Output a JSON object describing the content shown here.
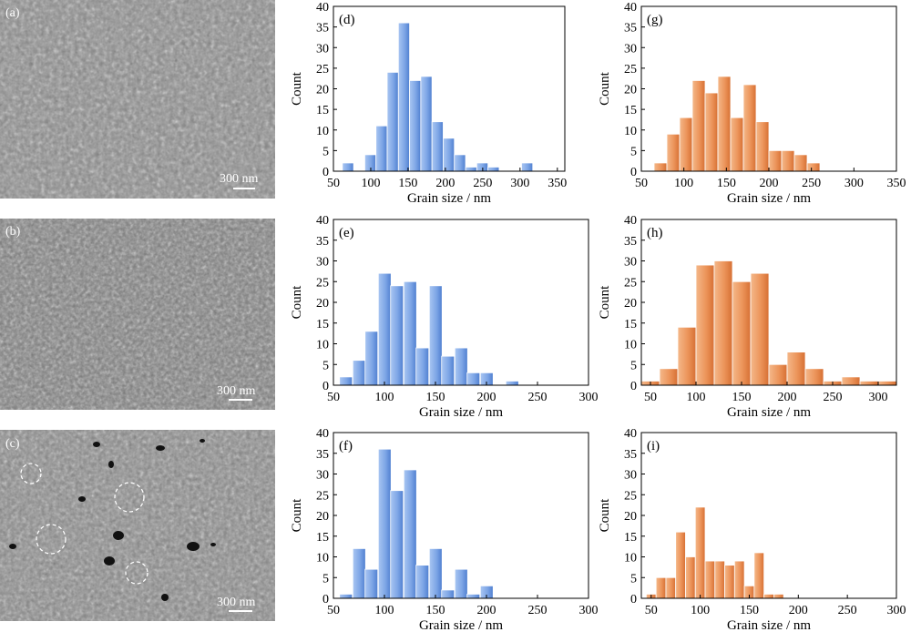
{
  "micrographs": [
    {
      "tag": "(a)",
      "scale_label": "300 nm",
      "pores": false
    },
    {
      "tag": "(b)",
      "scale_label": "300 nm",
      "pores": false
    },
    {
      "tag": "(c)",
      "scale_label": "300 nm",
      "pores": true
    }
  ],
  "colors": {
    "blue": "#7ea6e6",
    "blue_dark": "#4f7fd0",
    "orange": "#ec945a",
    "orange_dark": "#d66f33"
  },
  "chart_data": [
    {
      "id": "d",
      "type": "bar",
      "tag": "(d)",
      "xlabel": "Grain size / nm",
      "ylabel": "Count",
      "xlim": [
        50,
        360
      ],
      "ylim": [
        0,
        40
      ],
      "xticks": [
        50,
        100,
        150,
        200,
        250,
        300,
        350
      ],
      "yticks": [
        0,
        5,
        10,
        15,
        20,
        25,
        30,
        35,
        40
      ],
      "bin_width": 15,
      "color": "blue",
      "bars": [
        {
          "x": 62,
          "count": 2
        },
        {
          "x": 77,
          "count": 0
        },
        {
          "x": 92,
          "count": 4
        },
        {
          "x": 107,
          "count": 11
        },
        {
          "x": 122,
          "count": 24
        },
        {
          "x": 137,
          "count": 36
        },
        {
          "x": 152,
          "count": 22
        },
        {
          "x": 167,
          "count": 23
        },
        {
          "x": 182,
          "count": 12
        },
        {
          "x": 197,
          "count": 8
        },
        {
          "x": 212,
          "count": 4
        },
        {
          "x": 227,
          "count": 1
        },
        {
          "x": 242,
          "count": 2
        },
        {
          "x": 257,
          "count": 1
        },
        {
          "x": 272,
          "count": 0
        },
        {
          "x": 287,
          "count": 0
        },
        {
          "x": 302,
          "count": 2
        }
      ]
    },
    {
      "id": "g",
      "type": "bar",
      "tag": "(g)",
      "xlabel": "Grain size / nm",
      "ylabel": "Count",
      "xlim": [
        50,
        350
      ],
      "ylim": [
        0,
        40
      ],
      "xticks": [
        50,
        100,
        150,
        200,
        250,
        300,
        350
      ],
      "yticks": [
        0,
        5,
        10,
        15,
        20,
        25,
        30,
        35,
        40
      ],
      "bin_width": 15,
      "color": "orange",
      "bars": [
        {
          "x": 65,
          "count": 2
        },
        {
          "x": 80,
          "count": 9
        },
        {
          "x": 95,
          "count": 13
        },
        {
          "x": 110,
          "count": 22
        },
        {
          "x": 125,
          "count": 19
        },
        {
          "x": 140,
          "count": 23
        },
        {
          "x": 155,
          "count": 13
        },
        {
          "x": 170,
          "count": 21
        },
        {
          "x": 185,
          "count": 12
        },
        {
          "x": 200,
          "count": 5
        },
        {
          "x": 215,
          "count": 5
        },
        {
          "x": 230,
          "count": 4
        },
        {
          "x": 245,
          "count": 2
        }
      ]
    },
    {
      "id": "e",
      "type": "bar",
      "tag": "(e)",
      "xlabel": "Grain size / nm",
      "ylabel": "Count",
      "xlim": [
        50,
        300
      ],
      "ylim": [
        0,
        40
      ],
      "xticks": [
        50,
        100,
        150,
        200,
        250,
        300
      ],
      "yticks": [
        0,
        5,
        10,
        15,
        20,
        25,
        30,
        35,
        40
      ],
      "bin_width": 12.5,
      "color": "blue",
      "bars": [
        {
          "x": 56,
          "count": 2
        },
        {
          "x": 69,
          "count": 6
        },
        {
          "x": 81,
          "count": 13
        },
        {
          "x": 94,
          "count": 27
        },
        {
          "x": 106,
          "count": 24
        },
        {
          "x": 119,
          "count": 25
        },
        {
          "x": 131,
          "count": 9
        },
        {
          "x": 144,
          "count": 24
        },
        {
          "x": 156,
          "count": 7
        },
        {
          "x": 169,
          "count": 9
        },
        {
          "x": 181,
          "count": 3
        },
        {
          "x": 194,
          "count": 3
        },
        {
          "x": 206,
          "count": 0
        },
        {
          "x": 219,
          "count": 1
        }
      ]
    },
    {
      "id": "h",
      "type": "bar",
      "tag": "(h)",
      "xlabel": "Grain size / nm",
      "ylabel": "Count",
      "xlim": [
        40,
        320
      ],
      "ylim": [
        0,
        40
      ],
      "xticks": [
        50,
        100,
        150,
        200,
        250,
        300
      ],
      "yticks": [
        0,
        5,
        10,
        15,
        20,
        25,
        30,
        35,
        40
      ],
      "bin_width": 20,
      "color": "orange",
      "bars": [
        {
          "x": 40,
          "count": 1
        },
        {
          "x": 60,
          "count": 4
        },
        {
          "x": 80,
          "count": 14
        },
        {
          "x": 100,
          "count": 29
        },
        {
          "x": 120,
          "count": 30
        },
        {
          "x": 140,
          "count": 25
        },
        {
          "x": 160,
          "count": 27
        },
        {
          "x": 180,
          "count": 5
        },
        {
          "x": 200,
          "count": 8
        },
        {
          "x": 220,
          "count": 4
        },
        {
          "x": 240,
          "count": 1
        },
        {
          "x": 260,
          "count": 2
        },
        {
          "x": 280,
          "count": 1
        },
        {
          "x": 300,
          "count": 1
        }
      ]
    },
    {
      "id": "f",
      "type": "bar",
      "tag": "(f)",
      "xlabel": "Grain size / nm",
      "ylabel": "Count",
      "xlim": [
        50,
        300
      ],
      "ylim": [
        0,
        40
      ],
      "xticks": [
        50,
        100,
        150,
        200,
        250,
        300
      ],
      "yticks": [
        0,
        5,
        10,
        15,
        20,
        25,
        30,
        35,
        40
      ],
      "bin_width": 12.5,
      "color": "blue",
      "bars": [
        {
          "x": 56,
          "count": 1
        },
        {
          "x": 69,
          "count": 12
        },
        {
          "x": 81,
          "count": 7
        },
        {
          "x": 94,
          "count": 36
        },
        {
          "x": 106,
          "count": 26
        },
        {
          "x": 119,
          "count": 31
        },
        {
          "x": 131,
          "count": 8
        },
        {
          "x": 144,
          "count": 12
        },
        {
          "x": 156,
          "count": 2
        },
        {
          "x": 169,
          "count": 7
        },
        {
          "x": 181,
          "count": 1
        },
        {
          "x": 194,
          "count": 3
        }
      ]
    },
    {
      "id": "i",
      "type": "bar",
      "tag": "(i)",
      "xlabel": "Grain size / nm",
      "ylabel": "Count",
      "xlim": [
        40,
        300
      ],
      "ylim": [
        0,
        40
      ],
      "xticks": [
        50,
        100,
        150,
        200,
        250,
        300
      ],
      "yticks": [
        0,
        5,
        10,
        15,
        20,
        25,
        30,
        35,
        40
      ],
      "bin_width": 10,
      "color": "orange",
      "bars": [
        {
          "x": 45,
          "count": 1
        },
        {
          "x": 55,
          "count": 5
        },
        {
          "x": 65,
          "count": 5
        },
        {
          "x": 75,
          "count": 16
        },
        {
          "x": 85,
          "count": 10
        },
        {
          "x": 95,
          "count": 22
        },
        {
          "x": 105,
          "count": 9
        },
        {
          "x": 115,
          "count": 9
        },
        {
          "x": 125,
          "count": 8
        },
        {
          "x": 135,
          "count": 9
        },
        {
          "x": 145,
          "count": 3
        },
        {
          "x": 155,
          "count": 11
        },
        {
          "x": 165,
          "count": 1
        },
        {
          "x": 175,
          "count": 1
        }
      ]
    }
  ]
}
